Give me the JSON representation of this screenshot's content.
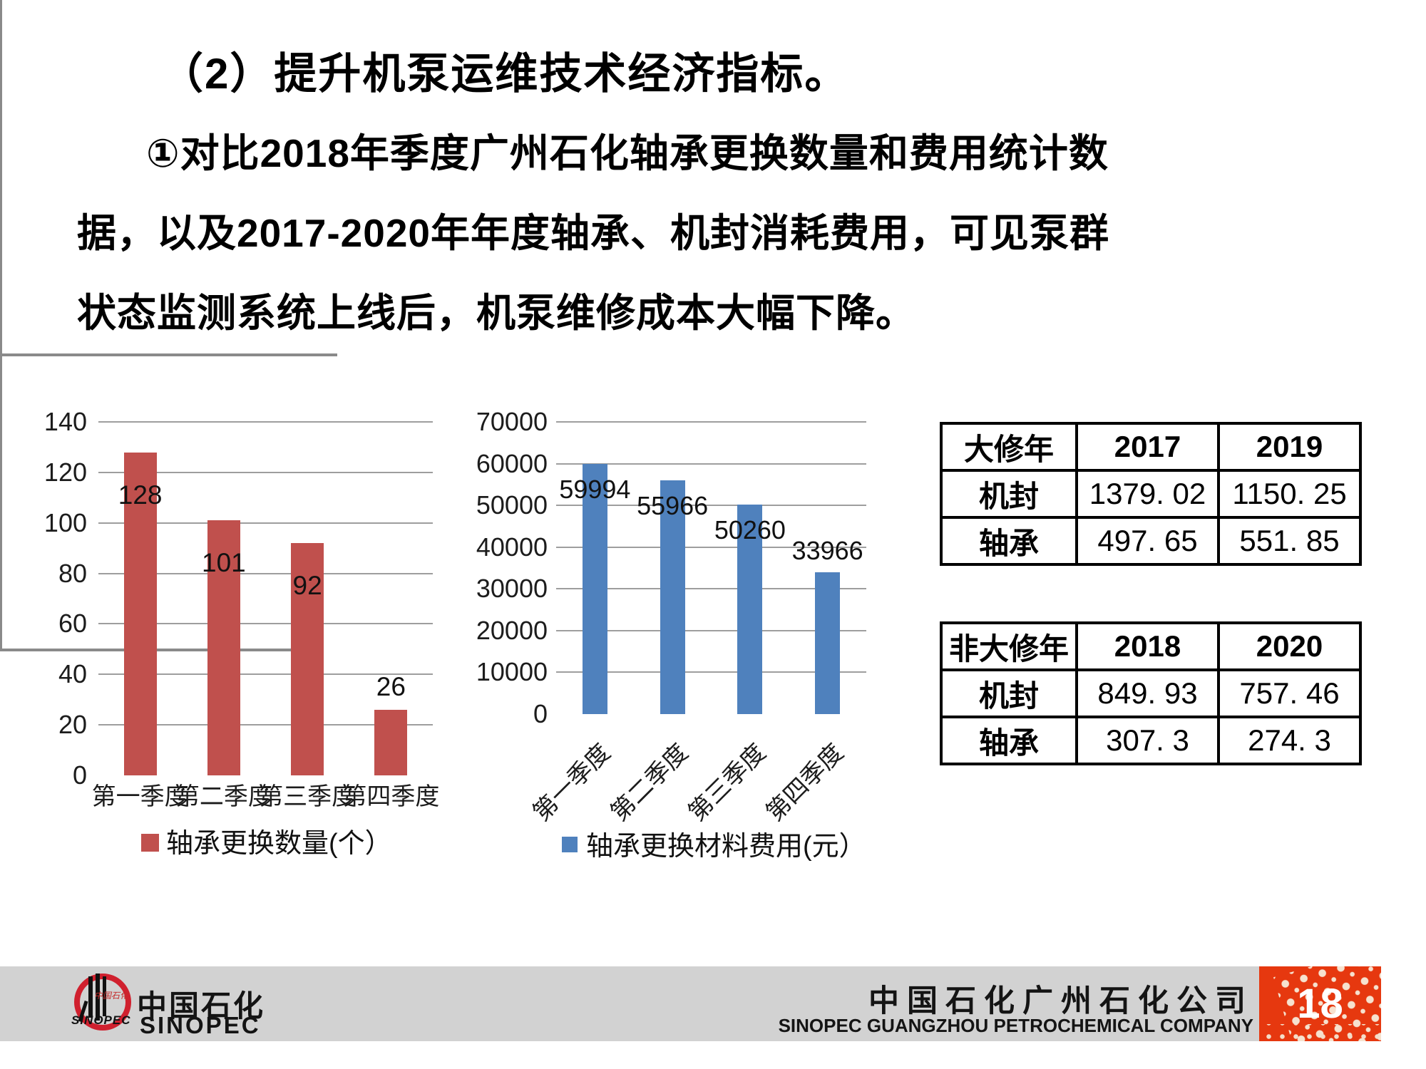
{
  "slide": {
    "title": "（2）提升机泵运维技术经济指标。",
    "body_lines": [
      "①对比2018年季度广州石化轴承更换数量和费用统计数",
      "据，以及2017-2020年年度轴承、机封消耗费用，可见泵群",
      "状态监测系统上线后，机泵维修成本大幅下降。"
    ]
  },
  "colors": {
    "bar_red": "#C0504D",
    "bar_blue": "#4F81BD",
    "grid": "#9E9E9E",
    "axis": "#8A8A8A",
    "footer_gray": "#D2D2D2",
    "footer_red": "#E6380F",
    "logo_red": "#D0202E",
    "dot_cream": "#F6E2CF"
  },
  "chart_data": [
    {
      "type": "bar",
      "categories": [
        "第一季度",
        "第二季度",
        "第三季度",
        "第四季度"
      ],
      "values": [
        128,
        101,
        92,
        26
      ],
      "data_labels": [
        "128",
        "101",
        "92",
        "26"
      ],
      "legend": "轴承更换数量(个）",
      "legend_position": "bottom",
      "xlabel": "",
      "ylabel": "",
      "ylim": [
        0,
        140
      ],
      "ytick_step": 20,
      "grid": true,
      "bar_color": "#C0504D",
      "x_label_rotation": 0
    },
    {
      "type": "bar",
      "categories": [
        "第一季度",
        "第二季度",
        "第三季度",
        "第四季度"
      ],
      "values": [
        59994,
        55966,
        50260,
        33966
      ],
      "data_labels": [
        "59994",
        "55966",
        "50260",
        "33966"
      ],
      "legend": "轴承更换材料费用(元）",
      "legend_position": "bottom",
      "xlabel": "",
      "ylabel": "",
      "ylim": [
        0,
        70000
      ],
      "ytick_step": 10000,
      "grid": true,
      "bar_color": "#4F81BD",
      "x_label_rotation": -45
    }
  ],
  "tables": [
    {
      "header": [
        "大修年",
        "2017",
        "2019"
      ],
      "rows": [
        [
          "机封",
          "1379. 02",
          "1150. 25"
        ],
        [
          "轴承",
          "497. 65",
          "551. 85"
        ]
      ]
    },
    {
      "header": [
        "非大修年",
        "2018",
        "2020"
      ],
      "rows": [
        [
          "机封",
          "849. 93",
          "757. 46"
        ],
        [
          "轴承",
          "307. 3",
          "274. 3"
        ]
      ]
    }
  ],
  "footer": {
    "logo_zh": "中国石化",
    "logo_en": "SINOPEC",
    "logo_circle_text": "SINOPEC",
    "company_zh": "中国石化广州石化公司",
    "company_en": "SINOPEC GUANGZHOU PETROCHEMICAL COMPANY",
    "page": "18"
  }
}
